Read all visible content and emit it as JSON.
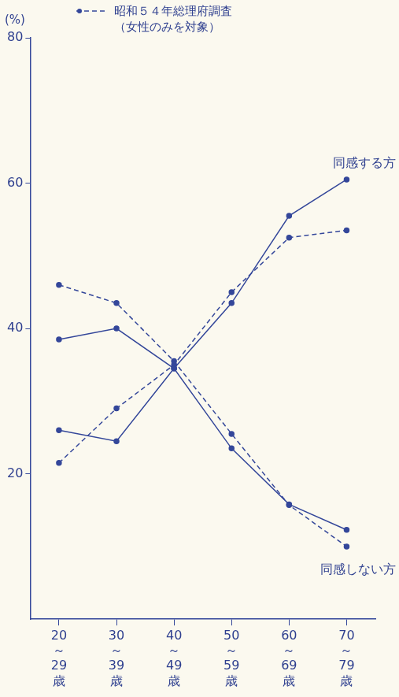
{
  "chart_data": {
    "type": "line",
    "y_label": "(%)",
    "categories": [
      "20～29歳",
      "30～39歳",
      "40～49歳",
      "50～59歳",
      "60～69歳",
      "70～79歳"
    ],
    "series": [
      {
        "color": "#34479a",
        "line_style": "solid",
        "marker": "circle",
        "values": [
          26,
          24.5,
          34.5,
          43.5,
          55.5,
          60.5
        ]
      },
      {
        "color": "#34479a",
        "line_style": "solid",
        "marker": "circle",
        "values": [
          38.5,
          40,
          34.5,
          23.5,
          15.8,
          12.3
        ]
      },
      {
        "name": "昭和５４年総理府調査（女性のみを対象）",
        "color": "#34479a",
        "line_style": "dashed",
        "marker": "circle",
        "values": [
          21.5,
          29,
          35,
          45,
          52.5,
          53.5
        ]
      },
      {
        "name": "昭和５４年総理府調査（女性のみを対象）",
        "color": "#34479a",
        "line_style": "dashed",
        "marker": "circle",
        "values": [
          46,
          43.5,
          35.5,
          25.5,
          15.7,
          10
        ]
      }
    ],
    "ylim": [
      0,
      80
    ],
    "yticks": [
      20,
      40,
      60,
      80
    ],
    "grid": false,
    "legend": "top",
    "annotations": [
      {
        "text": "同感する方"
      },
      {
        "text": "同感しない方"
      }
    ]
  }
}
